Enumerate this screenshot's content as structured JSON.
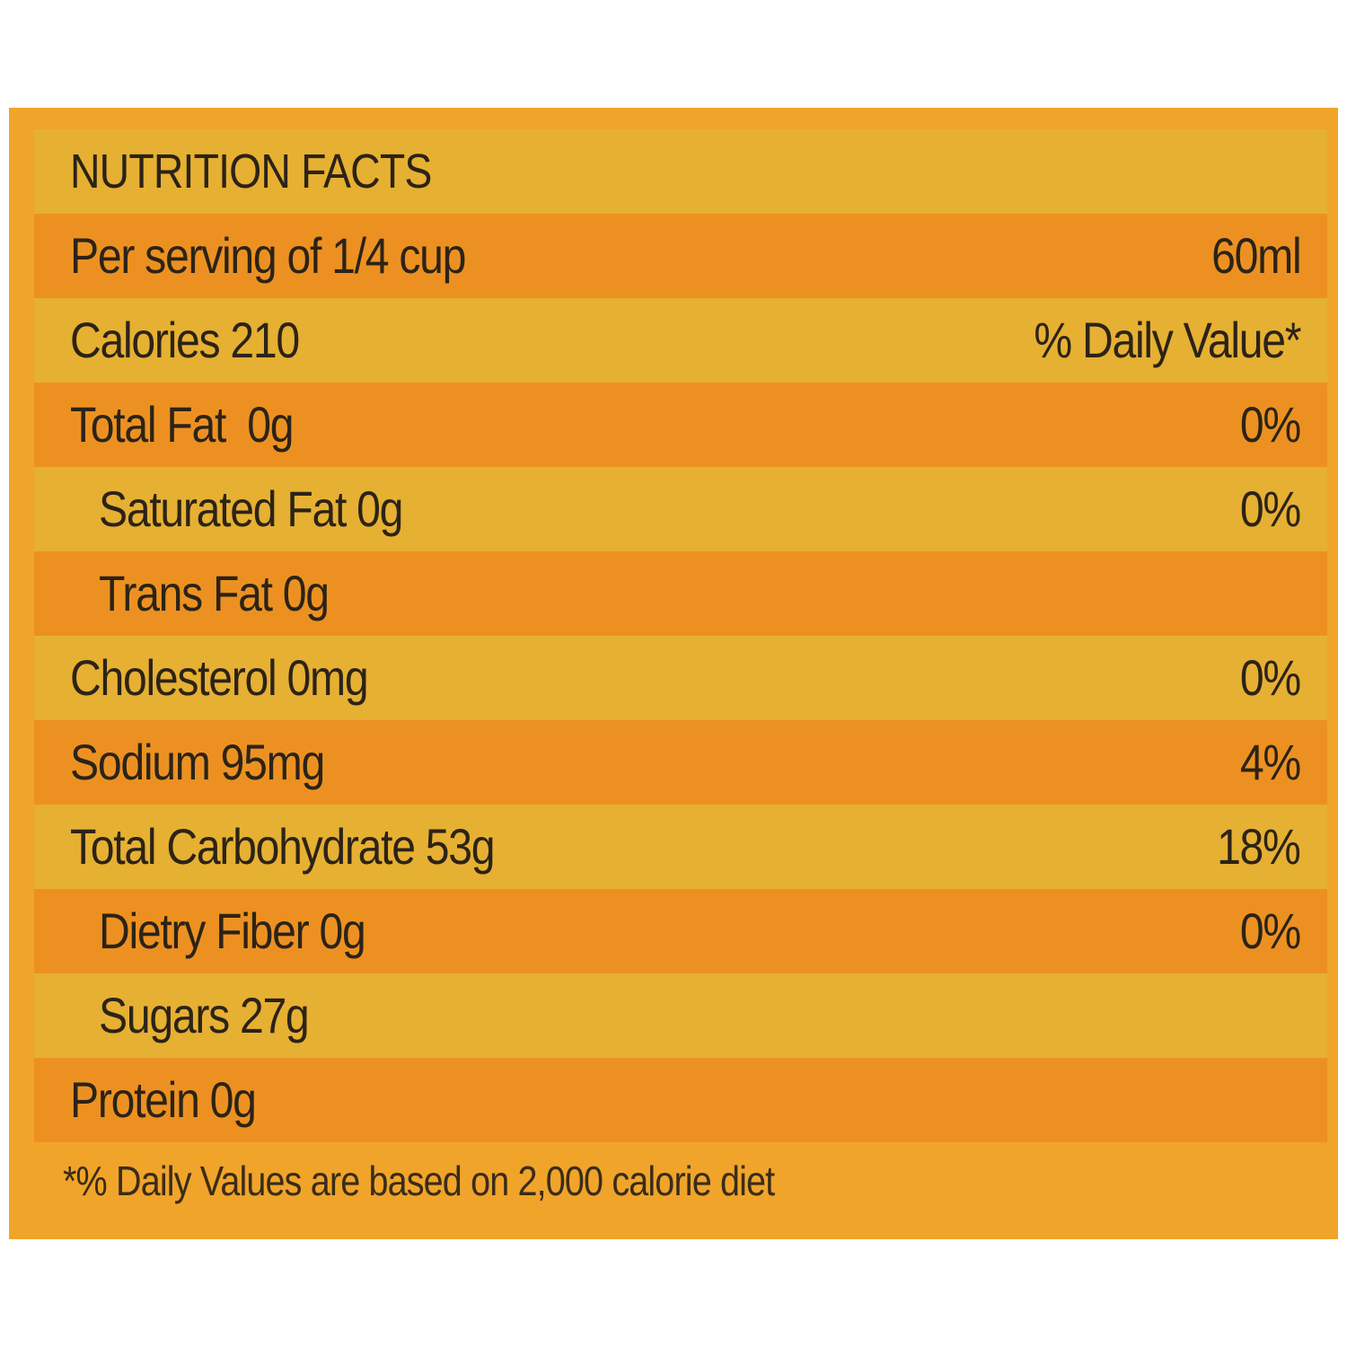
{
  "panel_colors": {
    "background": "#f0a42a",
    "band_light": "#e6b032",
    "band_dark": "#ec9121",
    "text": "#2c2317"
  },
  "title": "NUTRITION FACTS",
  "serving": {
    "label": "Per serving of 1/4 cup",
    "value": "60ml"
  },
  "calories": {
    "label": "Calories 210",
    "value": "% Daily Value*"
  },
  "nutrients": [
    {
      "label": "Total Fat  0g",
      "value": "0%"
    },
    {
      "label": "Saturated Fat 0g",
      "value": "0%"
    },
    {
      "label": "Trans Fat 0g",
      "value": ""
    },
    {
      "label": "Cholesterol 0mg",
      "value": "0%"
    },
    {
      "label": "Sodium 95mg",
      "value": "4%"
    },
    {
      "label": "Total Carbohydrate 53g",
      "value": "18%"
    },
    {
      "label": "Dietry Fiber 0g",
      "value": "0%"
    },
    {
      "label": "Sugars 27g",
      "value": ""
    },
    {
      "label": "Protein 0g",
      "value": ""
    }
  ],
  "footnote": "*% Daily Values are based on 2,000 calorie diet"
}
